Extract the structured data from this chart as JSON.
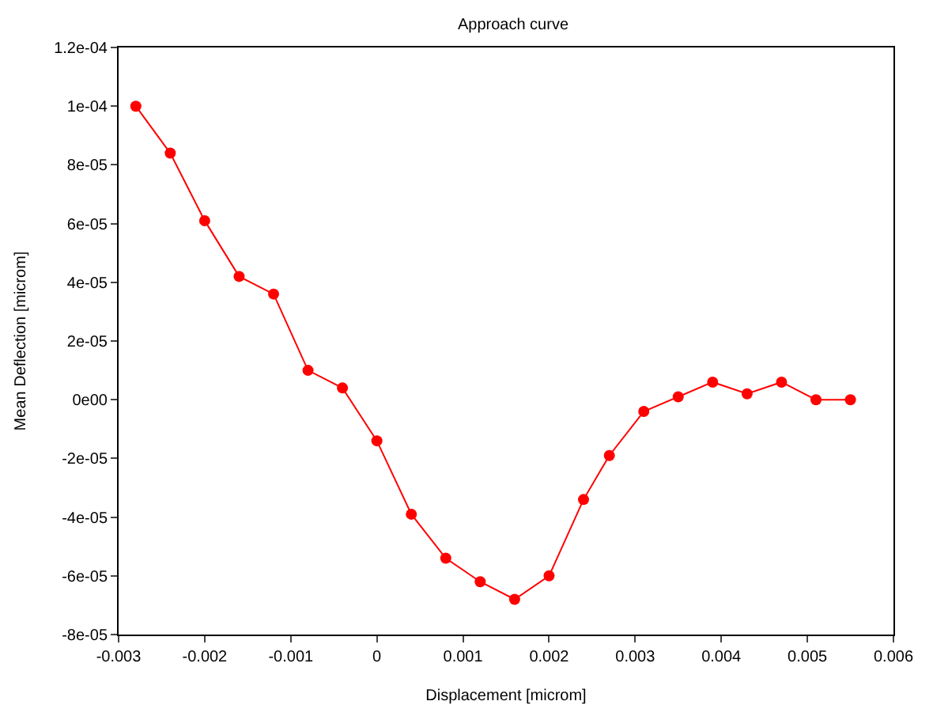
{
  "chart_data": {
    "type": "line",
    "title": "Approach curve",
    "xlabel": "Displacement [microm]",
    "ylabel": "Mean Deflection [microm]",
    "x": [
      -0.0028,
      -0.0024,
      -0.002,
      -0.0016,
      -0.0012,
      -0.0008,
      -0.0004,
      0.0,
      0.0004,
      0.0008,
      0.0012,
      0.0016,
      0.002,
      0.0024,
      0.0027,
      0.0031,
      0.0035,
      0.0039,
      0.0043,
      0.0047,
      0.0051,
      0.0055
    ],
    "series": [
      {
        "color": "#ff0000",
        "values": [
          0.0001,
          8.4e-05,
          6.1e-05,
          4.2e-05,
          3.6e-05,
          1e-05,
          4e-06,
          -1.4e-05,
          -3.9e-05,
          -5.4e-05,
          -6.2e-05,
          -6.8e-05,
          -6e-05,
          -3.4e-05,
          -1.9e-05,
          -4e-06,
          1e-06,
          6e-06,
          2e-06,
          6e-06,
          0,
          0
        ]
      }
    ],
    "marker": "circle",
    "line_style": "solid",
    "xlim": [
      -0.003,
      0.006
    ],
    "xticks": [
      -0.003,
      -0.002,
      -0.001,
      0,
      0.001,
      0.002,
      0.003,
      0.004,
      0.005,
      0.006
    ],
    "ylim": [
      -8e-05,
      0.00012
    ],
    "yticks": [
      {
        "value": -8e-05,
        "label": "-8e-05"
      },
      {
        "value": -6e-05,
        "label": "-6e-05"
      },
      {
        "value": -4e-05,
        "label": "-4e-05"
      },
      {
        "value": -2e-05,
        "label": "-2e-05"
      },
      {
        "value": 0,
        "label": "0e00"
      },
      {
        "value": 2e-05,
        "label": "2e-05"
      },
      {
        "value": 4e-05,
        "label": "4e-05"
      },
      {
        "value": 6e-05,
        "label": "6e-05"
      },
      {
        "value": 8e-05,
        "label": "8e-05"
      },
      {
        "value": 0.0001,
        "label": "1e-04"
      },
      {
        "value": 0.00012,
        "label": "1.2e-04"
      }
    ]
  }
}
